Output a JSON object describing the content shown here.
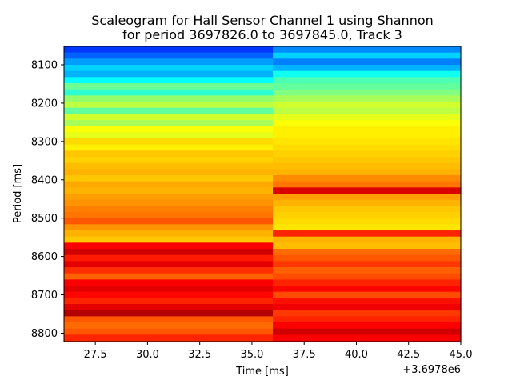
{
  "chart_data": {
    "type": "heatmap",
    "title_line1": "Scaleogram for Hall Sensor Channel 1 using Shannon",
    "title_line2": "for period 3697826.0 to 3697845.0, Track 3",
    "xlabel": "Time [ms]",
    "ylabel": "Period [ms]",
    "x_offset_label": "+3.6978e6",
    "xlim": [
      26,
      45
    ],
    "ylim": [
      8052,
      8822
    ],
    "y_inverted": true,
    "x_ticks": [
      27.5,
      30.0,
      32.5,
      35.0,
      37.5,
      40.0,
      42.5,
      45.0
    ],
    "x_tick_labels": [
      "27.5",
      "30.0",
      "32.5",
      "35.0",
      "37.5",
      "40.0",
      "42.5",
      "45.0"
    ],
    "y_ticks": [
      8100,
      8200,
      8300,
      8400,
      8500,
      8600,
      8700,
      8800
    ],
    "y_tick_labels": [
      "8100",
      "8200",
      "8300",
      "8400",
      "8500",
      "8600",
      "8700",
      "8800"
    ],
    "colormap": "jet",
    "time_segments": [
      [
        26,
        36
      ],
      [
        36,
        45
      ]
    ],
    "period_bins": [
      8052,
      8068,
      8084,
      8100,
      8116,
      8132,
      8148,
      8164,
      8180,
      8196,
      8212,
      8228,
      8244,
      8260,
      8276,
      8292,
      8308,
      8324,
      8340,
      8356,
      8372,
      8388,
      8404,
      8420,
      8436,
      8452,
      8468,
      8484,
      8500,
      8516,
      8532,
      8548,
      8564,
      8580,
      8596,
      8612,
      8628,
      8644,
      8660,
      8676,
      8692,
      8708,
      8724,
      8740,
      8756,
      8772,
      8788,
      8804,
      8822
    ],
    "values_segment_1": [
      0.18,
      0.22,
      0.28,
      0.33,
      0.3,
      0.38,
      0.48,
      0.42,
      0.52,
      0.56,
      0.47,
      0.58,
      0.54,
      0.62,
      0.6,
      0.66,
      0.64,
      0.68,
      0.67,
      0.69,
      0.7,
      0.68,
      0.71,
      0.7,
      0.72,
      0.73,
      0.75,
      0.76,
      0.79,
      0.73,
      0.7,
      0.68,
      0.88,
      0.92,
      0.85,
      0.9,
      0.83,
      0.78,
      0.88,
      0.9,
      0.87,
      0.84,
      0.9,
      0.95,
      0.79,
      0.77,
      0.79,
      0.84
    ],
    "values_segment_2": [
      0.26,
      0.33,
      0.25,
      0.3,
      0.39,
      0.45,
      0.47,
      0.5,
      0.54,
      0.58,
      0.56,
      0.6,
      0.62,
      0.64,
      0.64,
      0.65,
      0.66,
      0.67,
      0.68,
      0.69,
      0.7,
      0.74,
      0.76,
      0.91,
      0.72,
      0.7,
      0.68,
      0.67,
      0.66,
      0.65,
      0.84,
      0.7,
      0.69,
      0.77,
      0.79,
      0.82,
      0.78,
      0.8,
      0.84,
      0.87,
      0.8,
      0.86,
      0.89,
      0.82,
      0.84,
      0.88,
      0.92,
      0.88
    ]
  }
}
